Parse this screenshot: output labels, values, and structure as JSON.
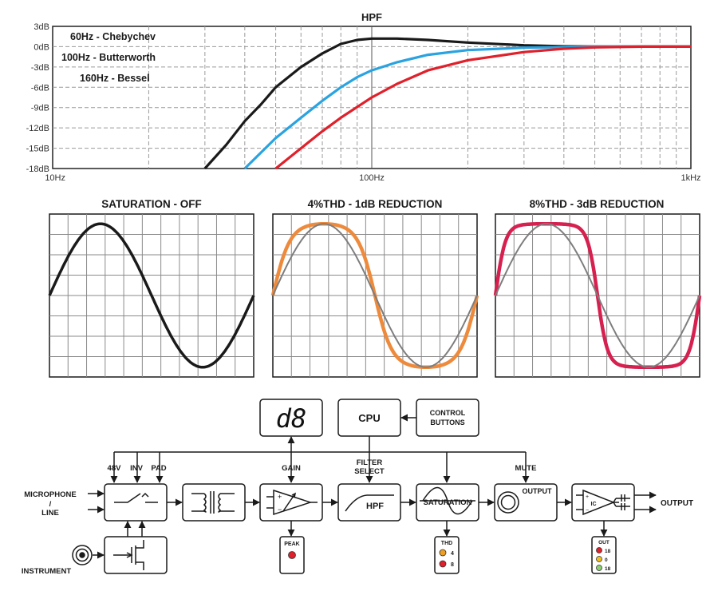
{
  "hpf_chart": {
    "title": "HPF",
    "type": "line",
    "x_scale": "log",
    "xlim": [
      10,
      1000
    ],
    "ylim": [
      -18,
      3
    ],
    "x_ticks": [
      {
        "value": 10,
        "label": "10Hz"
      },
      {
        "value": 100,
        "label": "100Hz"
      },
      {
        "value": 1000,
        "label": "1kHz"
      }
    ],
    "y_ticks": [
      {
        "value": 3,
        "label": "3dB"
      },
      {
        "value": 0,
        "label": "0dB"
      },
      {
        "value": -3,
        "label": "-3dB"
      },
      {
        "value": -6,
        "label": "-6dB"
      },
      {
        "value": -9,
        "label": "-9dB"
      },
      {
        "value": -12,
        "label": "-12dB"
      },
      {
        "value": -15,
        "label": "-15dB"
      },
      {
        "value": -18,
        "label": "-18dB"
      }
    ],
    "grid": true,
    "series": [
      {
        "name": "60Hz - Chebychev",
        "color": "#1a1a1a",
        "x": [
          30,
          35,
          40,
          45,
          50,
          60,
          70,
          80,
          90,
          100,
          120,
          150,
          200,
          300,
          400,
          600,
          1000
        ],
        "y": [
          -18,
          -14.5,
          -11,
          -8.5,
          -6,
          -3,
          -1,
          0.4,
          1.0,
          1.2,
          1.2,
          1.0,
          0.6,
          0.2,
          0.05,
          0,
          0
        ]
      },
      {
        "name": "100Hz - Butterworth",
        "color": "#2aa3e0",
        "x": [
          40,
          50,
          60,
          70,
          80,
          90,
          100,
          120,
          150,
          200,
          300,
          500,
          1000
        ],
        "y": [
          -18,
          -13.5,
          -10.5,
          -8,
          -6,
          -4.5,
          -3.5,
          -2.3,
          -1.2,
          -0.5,
          -0.15,
          0,
          0
        ],
        "label_name": "100Hz - Butterworth"
      },
      {
        "name": "160Hz - Bessel",
        "color": "#e0202a",
        "x": [
          50,
          60,
          70,
          80,
          100,
          120,
          150,
          200,
          300,
          400,
          500,
          700,
          1000
        ],
        "y": [
          -18,
          -15,
          -12.5,
          -10.5,
          -7.5,
          -5.5,
          -3.5,
          -2,
          -0.8,
          -0.3,
          -0.1,
          0,
          0
        ]
      }
    ]
  },
  "wave_panels": [
    {
      "title": "SATURATION - OFF",
      "ref_color": "#1a1a1a",
      "sat_color": "",
      "drive": 0
    },
    {
      "title": "4%THD - 1dB REDUCTION",
      "ref_color": "#7d7d7d",
      "sat_color": "#ee8a3c",
      "drive": 1.8
    },
    {
      "title": "8%THD - 3dB REDUCTION",
      "ref_color": "#7d7d7d",
      "sat_color": "#d6204f",
      "drive": 3.2
    }
  ],
  "block_diagram": {
    "display": {
      "text": "d8"
    },
    "cpu": {
      "label": "CPU"
    },
    "control_buttons": {
      "line1": "CONTROL",
      "line2": "BUTTONS"
    },
    "inputs": {
      "microphone": "MICROPHONE",
      "slash": "/",
      "line": "LINE",
      "instrument": "INSTRUMENT"
    },
    "switch_controls": {
      "p48v": "48V",
      "inv": "INV",
      "pad": "PAD"
    },
    "gain": {
      "label": "GAIN"
    },
    "filter": {
      "line1": "FILTER",
      "line2": "SELECT",
      "block_label": "HPF"
    },
    "saturation": {
      "label": "SATURATION"
    },
    "mute": {
      "label": "MUTE"
    },
    "output_block": {
      "label": "OUTPUT"
    },
    "ic": {
      "label": "IC"
    },
    "output_arrow": {
      "label": "OUTPUT"
    },
    "peak": {
      "label": "PEAK",
      "led_color": "#e0202a"
    },
    "thd": {
      "label": "THD",
      "leds": [
        {
          "value": "4",
          "color": "#f0a020"
        },
        {
          "value": "8",
          "color": "#e0202a"
        }
      ]
    },
    "out_meter": {
      "label": "OUT",
      "leds": [
        {
          "value": "18",
          "color": "#e0202a"
        },
        {
          "value": "0",
          "color": "#f0c020"
        },
        {
          "value": "18",
          "color": "#8cd070"
        }
      ]
    }
  }
}
